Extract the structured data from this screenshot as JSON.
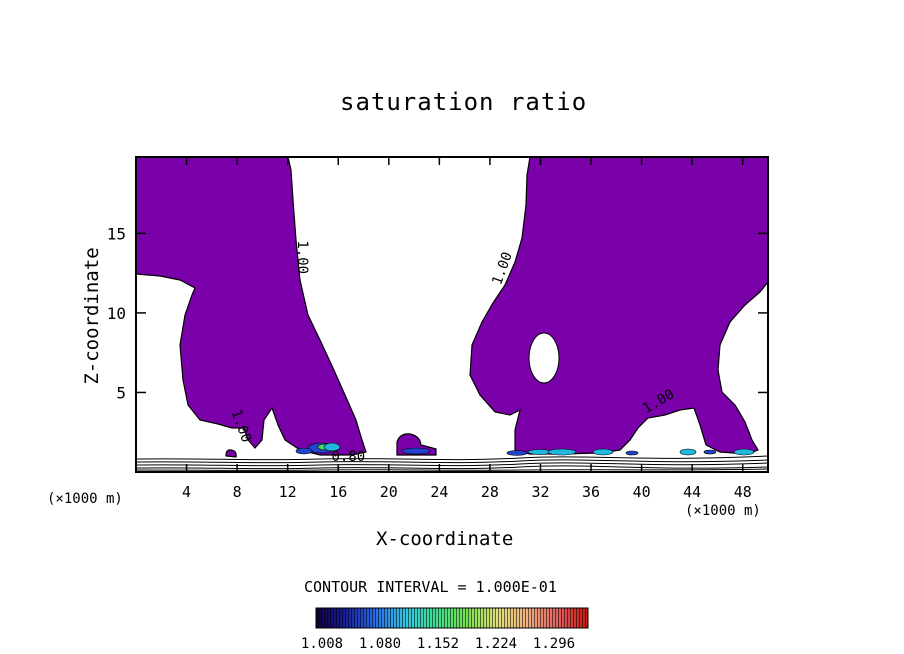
{
  "chart_data": {
    "type": "contour",
    "title": "saturation ratio",
    "xlabel": "X-coordinate",
    "ylabel": "Z-coordinate",
    "x_unit": "(×1000 m)",
    "x_unit_right": "(×1000 m)",
    "xlim": [
      0,
      50
    ],
    "ylim": [
      0,
      19.8
    ],
    "x_ticks": [
      4,
      8,
      12,
      16,
      20,
      24,
      28,
      32,
      36,
      40,
      44,
      48
    ],
    "y_ticks": [
      5,
      10,
      15
    ],
    "contour_interval_text": "CONTOUR INTERVAL = 1.000E-01",
    "contour_labels": [
      {
        "text": "1.00",
        "x": 12.8,
        "z": 13.5
      },
      {
        "text": "1.00",
        "x": 29.3,
        "z": 12.7
      },
      {
        "text": "1.00",
        "x": 8.0,
        "z": 2.8
      },
      {
        "text": "1.00",
        "x": 41.5,
        "z": 4.2
      },
      {
        "text": "0.80",
        "x": 16.8,
        "z": 0.7
      }
    ],
    "colorbar": {
      "tick_labels": [
        "1.008",
        "1.080",
        "1.152",
        "1.224",
        "1.296"
      ],
      "colors": [
        "#10003a",
        "#1a1e9e",
        "#2a6fe8",
        "#35c8e0",
        "#3fe090",
        "#7be050",
        "#e0e07a",
        "#f0b080",
        "#e06060",
        "#c81810"
      ]
    },
    "region_colors": {
      "supersaturated": "#7a00aa",
      "pocket_blue": "#2244cc",
      "pocket_cyan": "#20b8e0",
      "pocket_green": "#40e060"
    }
  }
}
